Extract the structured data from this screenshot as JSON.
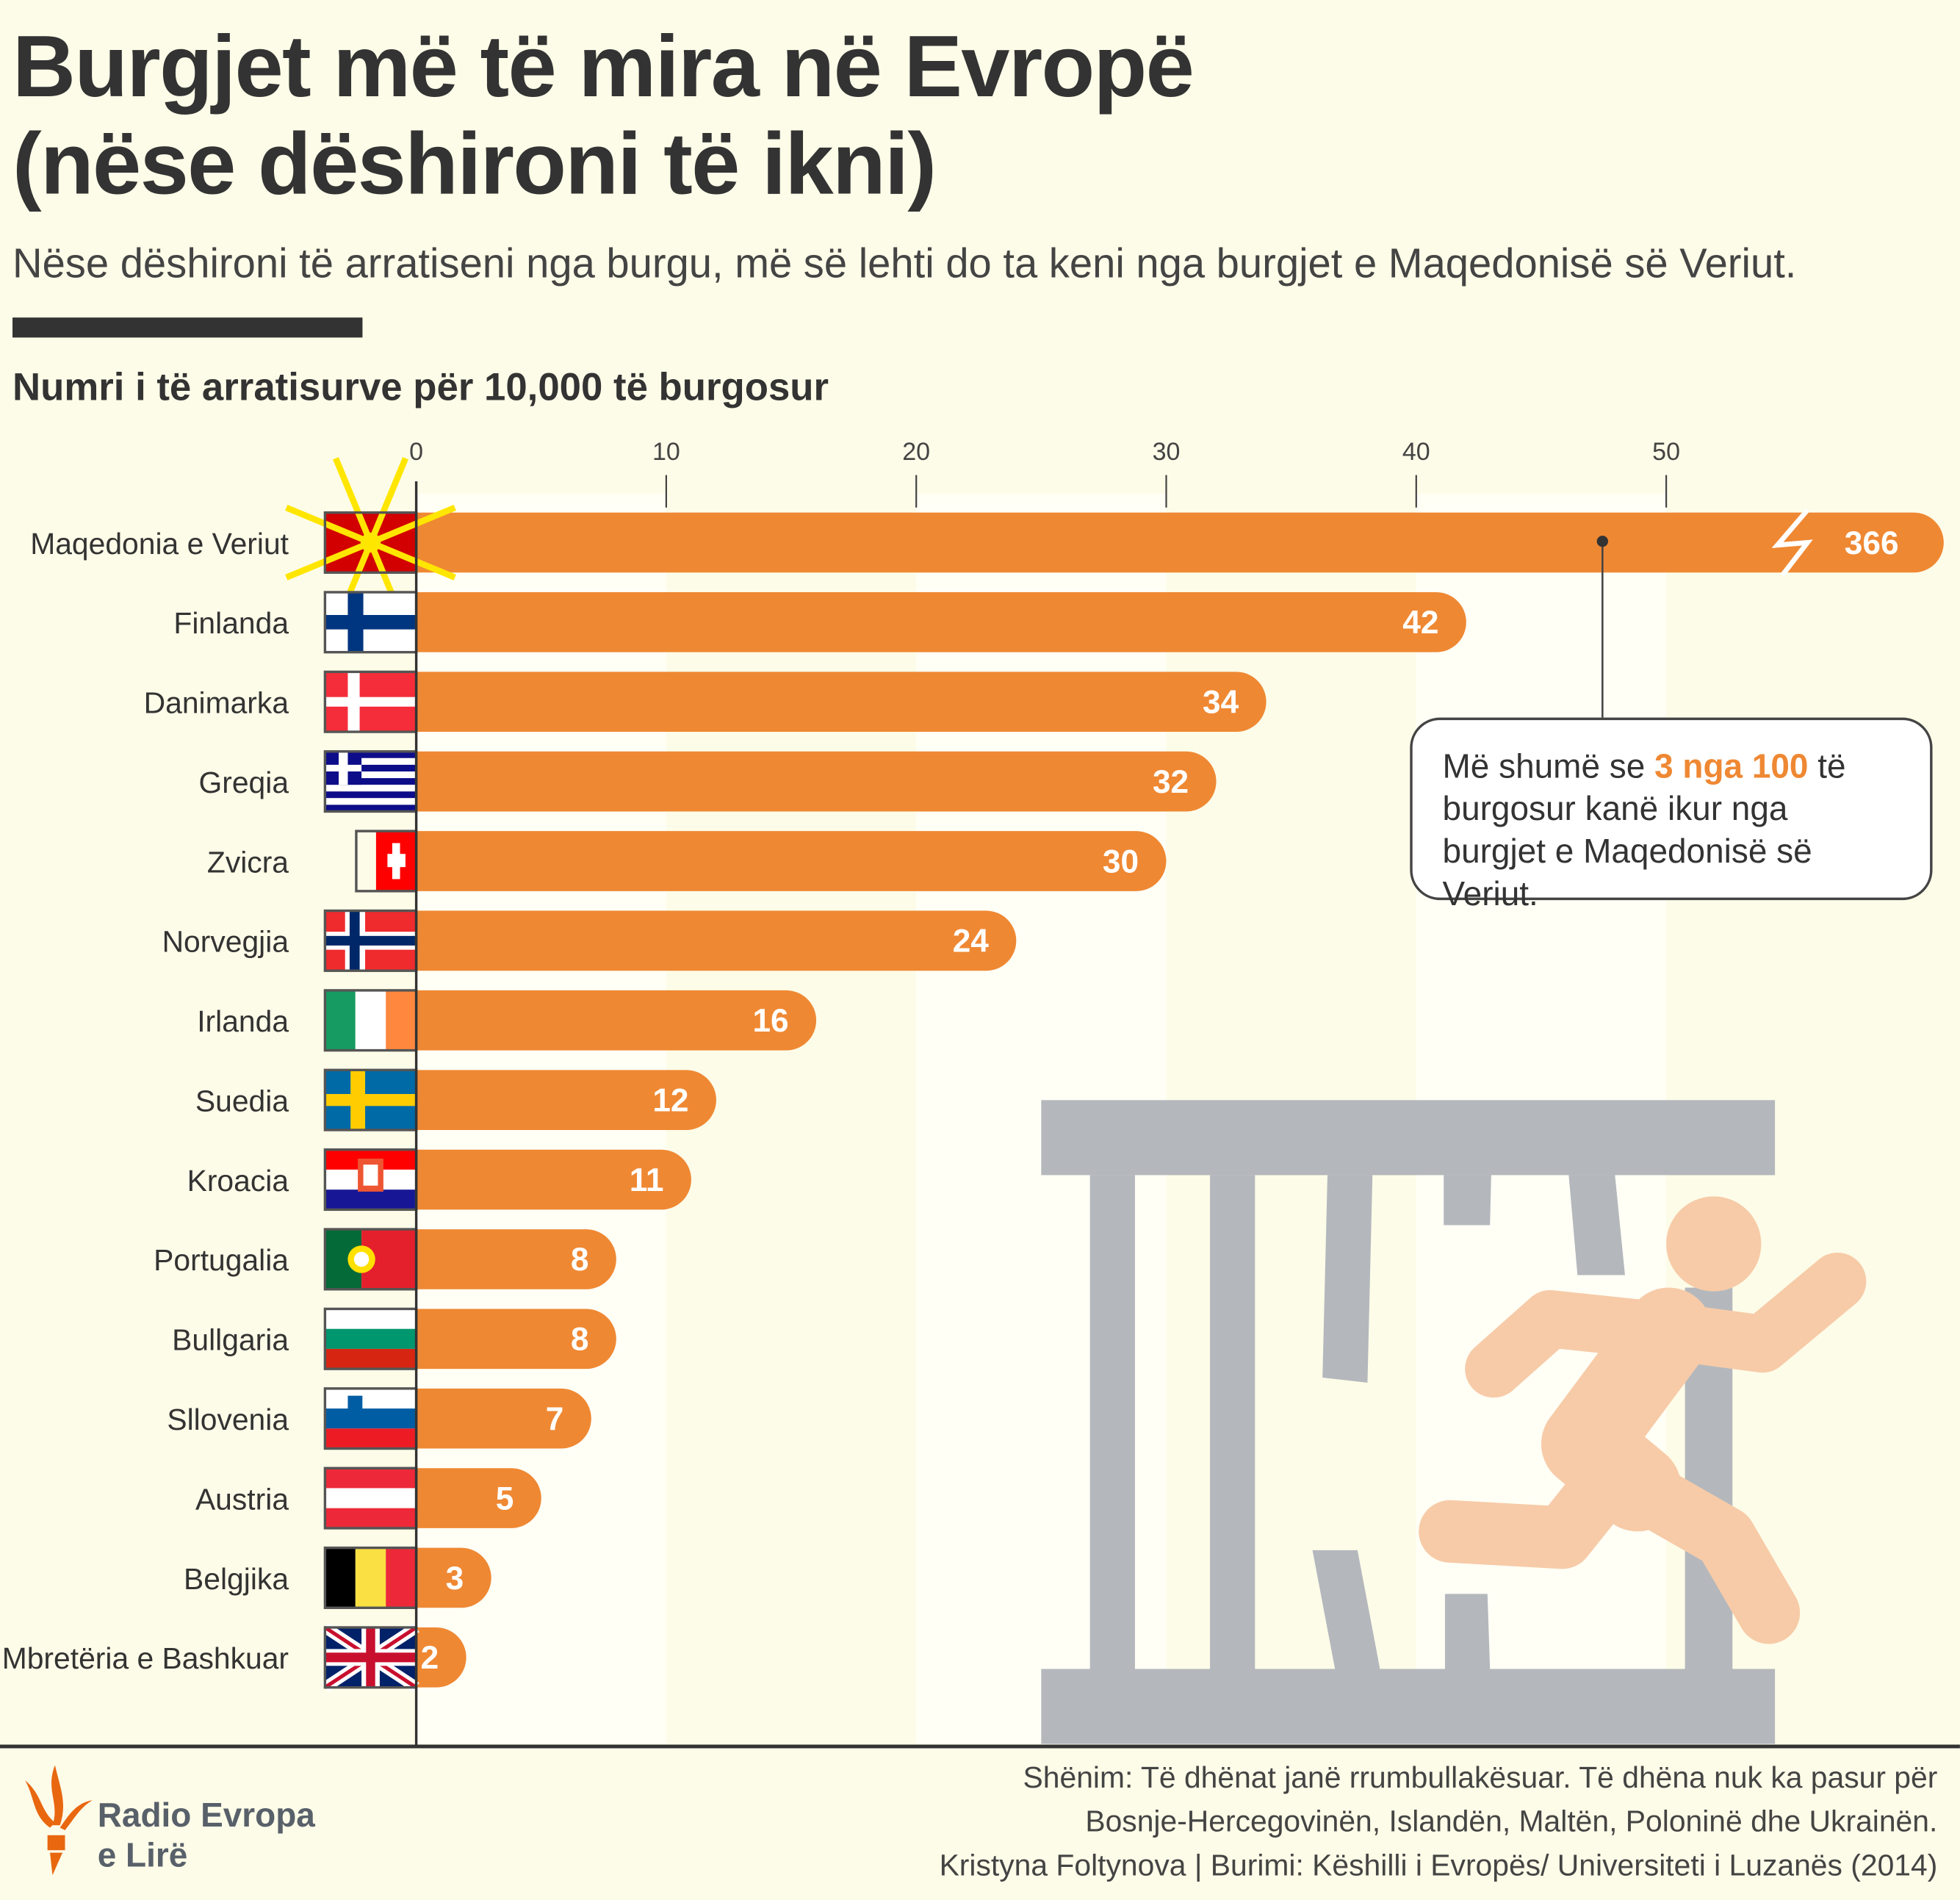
{
  "header": {
    "title_line1": "Burgjet më të mira në Evropë",
    "title_line2": "(nëse dëshironi të ikni)",
    "subtitle": "Nëse dëshironi të arratiseni nga burgu, më së lehti do ta keni nga burgjet e Maqedonisë së Veriut."
  },
  "callout": {
    "text_before": "Më shumë se ",
    "highlight": "3 nga 100",
    "text_after": " të burgosur kanë ikur nga burgjet e Maqedonisë së Veriut."
  },
  "footer": {
    "note_line1": "Shënim: Të dhënat janë rrumbullakësuar. Të dhëna nuk ka pasur për",
    "note_line2": "Bosnje-Hercegovinën, Islandën, Maltën, Poloninë dhe Ukrainën.",
    "credit": "Kristyna Foltynova | Burimi:  Këshilli i Evropës/ Universiteti i Luzanës (2014)",
    "logo_line1": "Radio Evropa",
    "logo_line2": "e Lirë"
  },
  "colors": {
    "bar": "#ef8833",
    "highlight": "#ef8833",
    "prison": "#b4b8bd",
    "runner": "#f7cba8",
    "background": "#fdfce8"
  },
  "chart_data": {
    "type": "bar",
    "orientation": "horizontal",
    "title": "Numri i të arratisurve për 10,000 të burgosur",
    "xlim": [
      0,
      55
    ],
    "xticks": [
      0,
      10,
      20,
      30,
      40,
      50
    ],
    "axis_break": "Maqedonia e Veriut bar truncated (value 366)",
    "categories": [
      "Maqedonia e Veriut",
      "Finlanda",
      "Danimarka",
      "Greqia",
      "Zvicra",
      "Norvegjia",
      "Irlanda",
      "Suedia",
      "Kroacia",
      "Portugalia",
      "Bullgaria",
      "Sllovenia",
      "Austria",
      "Belgjika",
      "Mbretëria e Bashkuar"
    ],
    "flags": [
      "mk",
      "fi",
      "dk",
      "gr",
      "ch",
      "no",
      "ie",
      "se",
      "hr",
      "pt",
      "bg",
      "si",
      "at",
      "be",
      "gb"
    ],
    "values": [
      366,
      42,
      34,
      32,
      30,
      24,
      16,
      12,
      11,
      8,
      8,
      7,
      5,
      3,
      2
    ]
  }
}
